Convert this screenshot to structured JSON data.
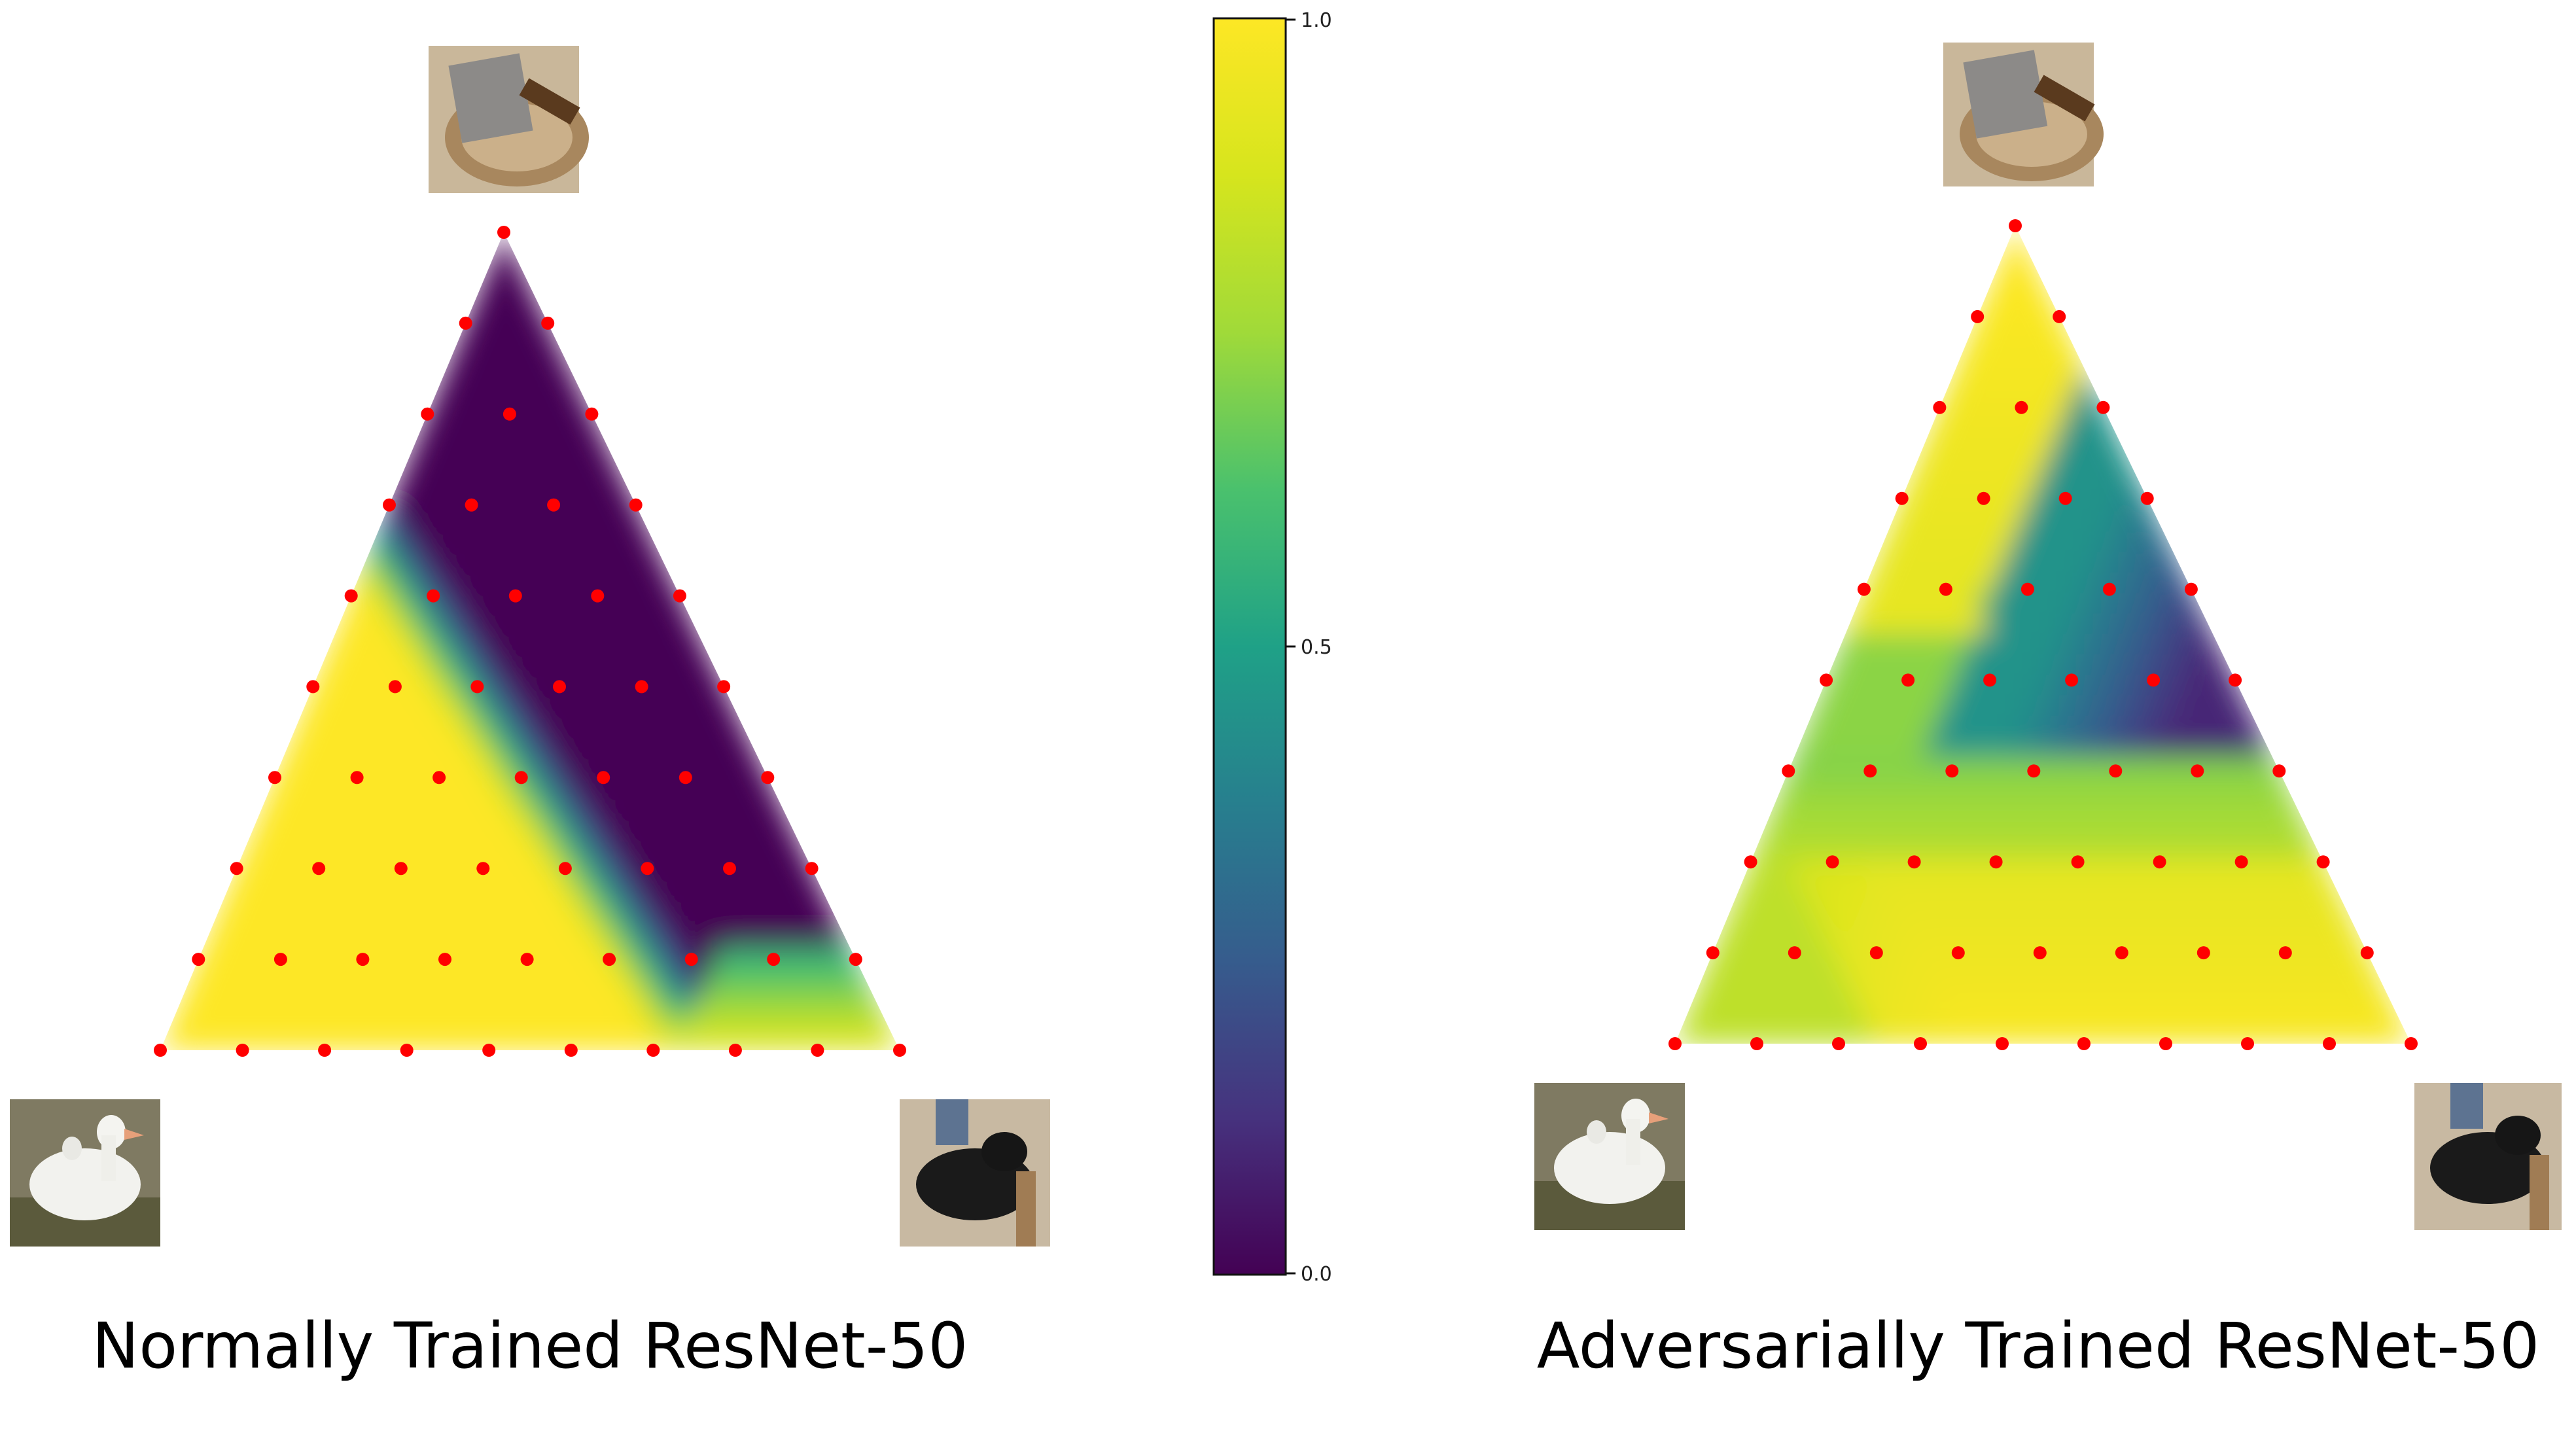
{
  "chart_data": [
    {
      "type": "heatmap",
      "title": "Normally Trained ResNet-50",
      "plot": "ternary-interpolation",
      "colormap": "viridis",
      "range": [
        0.0,
        1.0
      ],
      "corner_images": {
        "top": "cleaver-on-pan-thumbnail",
        "bottom_left": "white-goose-thumbnail",
        "bottom_right": "black-scottish-terrier-thumbnail"
      },
      "sample_grid": "triangular, 10 points per base edge, 55 sample points (red markers)",
      "regions": [
        {
          "area": "left edge and bottom-left half",
          "value": 1.0
        },
        {
          "area": "top-right interior toward right edge",
          "value": 0.0
        },
        {
          "area": "narrow boundary band",
          "value": 0.5
        },
        {
          "area": "bottom-right corner",
          "value": 0.6
        }
      ]
    },
    {
      "type": "colorbar",
      "colormap": "viridis",
      "ticks": [
        "0.0",
        "0.5",
        "1.0"
      ],
      "tick_values": [
        0.0,
        0.5,
        1.0
      ]
    },
    {
      "type": "heatmap",
      "title": "Adversarially Trained ResNet-50",
      "plot": "ternary-interpolation",
      "colormap": "viridis",
      "range": [
        0.0,
        1.0
      ],
      "corner_images": {
        "top": "cleaver-on-pan-thumbnail",
        "bottom_left": "white-goose-thumbnail",
        "bottom_right": "black-scottish-terrier-thumbnail"
      },
      "sample_grid": "triangular, 10 points per base edge, 55 sample points (red markers)",
      "regions": [
        {
          "area": "top and upper-left",
          "value": 1.0
        },
        {
          "area": "upper-right pocket",
          "value": 0.1
        },
        {
          "area": "middle band",
          "value": 0.7
        },
        {
          "area": "bottom band toward right",
          "value": 0.97
        },
        {
          "area": "bottom-left corner",
          "value": 0.8
        }
      ]
    }
  ],
  "colors": {
    "sample_point": "#ff0000",
    "viridis_low": "#440154",
    "viridis_mid": "#21918c",
    "viridis_high": "#fde725"
  },
  "colorbar": {
    "tick_min": "0.0",
    "tick_mid": "0.5",
    "tick_max": "1.0"
  },
  "captions": {
    "left": "Normally Trained ResNet-50",
    "right": "Adversarially Trained ResNet-50"
  }
}
